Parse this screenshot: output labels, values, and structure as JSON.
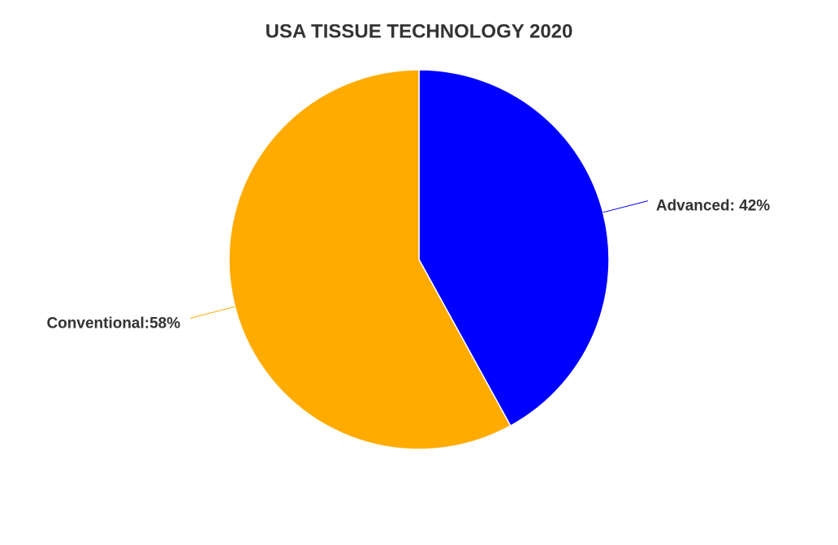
{
  "chart_data": {
    "type": "pie",
    "title": "USA TISSUE TECHNOLOGY 2020",
    "values": [
      42,
      58
    ],
    "value_labels": [
      "Advanced: 42%",
      "Conventional:58%"
    ],
    "colors": [
      "#0000ff",
      "#ffab00"
    ]
  }
}
